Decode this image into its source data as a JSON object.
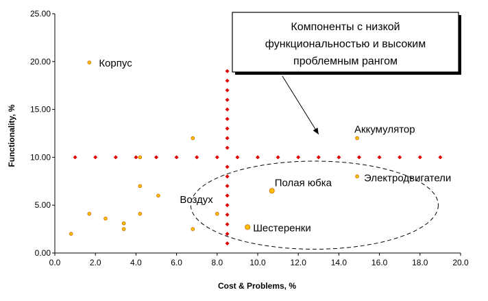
{
  "chart_data": {
    "type": "scatter",
    "xlabel": "Cost & Problems, %",
    "ylabel": "Functionality, %",
    "xlim": [
      0,
      20
    ],
    "ylim": [
      0,
      25
    ],
    "x_ticks": [
      "0.0",
      "2.0",
      "4.0",
      "6.0",
      "8.0",
      "10.0",
      "12.0",
      "14.0",
      "16.0",
      "18.0",
      "20.0"
    ],
    "y_ticks": [
      "0.00",
      "5.00",
      "10.00",
      "15.00",
      "20.00",
      "25.00"
    ],
    "grid": false,
    "legend": "none",
    "colors": {
      "component_fill": "#ffc000",
      "component_stroke": "#cc6600",
      "threshold_fill": "#e00000",
      "callout_border": "#000000",
      "ellipse_stroke": "#000000"
    },
    "series": [
      {
        "points": [
          {
            "x": 0.8,
            "y": 2.0
          },
          {
            "x": 1.7,
            "y": 4.1
          },
          {
            "x": 1.7,
            "y": 19.9,
            "label": "Корпус"
          },
          {
            "x": 2.5,
            "y": 3.6
          },
          {
            "x": 3.4,
            "y": 3.1
          },
          {
            "x": 3.4,
            "y": 2.5
          },
          {
            "x": 4.2,
            "y": 10.0
          },
          {
            "x": 4.2,
            "y": 7.0
          },
          {
            "x": 4.2,
            "y": 4.1
          },
          {
            "x": 5.1,
            "y": 6.0
          },
          {
            "x": 6.8,
            "y": 12.0
          },
          {
            "x": 6.8,
            "y": 2.5
          },
          {
            "x": 8.0,
            "y": 4.1,
            "label": "Воздух"
          },
          {
            "x": 9.5,
            "y": 2.7,
            "label": "Шестеренки",
            "size": "large"
          },
          {
            "x": 10.7,
            "y": 6.5,
            "label": "Полая юбка",
            "size": "large"
          },
          {
            "x": 14.9,
            "y": 12.0,
            "label": "Аккумулятор"
          },
          {
            "x": 14.9,
            "y": 8.0,
            "label": "Электродвигатели"
          }
        ]
      },
      {
        "points": [
          {
            "x": 1,
            "y": 10
          },
          {
            "x": 2,
            "y": 10
          },
          {
            "x": 3,
            "y": 10
          },
          {
            "x": 4,
            "y": 10
          },
          {
            "x": 5,
            "y": 10
          },
          {
            "x": 6,
            "y": 10
          },
          {
            "x": 7,
            "y": 10
          },
          {
            "x": 8,
            "y": 10
          },
          {
            "x": 9,
            "y": 10
          },
          {
            "x": 10,
            "y": 10
          },
          {
            "x": 11,
            "y": 10
          },
          {
            "x": 12,
            "y": 10
          },
          {
            "x": 13,
            "y": 10
          },
          {
            "x": 14,
            "y": 10
          },
          {
            "x": 15,
            "y": 10
          },
          {
            "x": 16,
            "y": 10
          },
          {
            "x": 17,
            "y": 10
          },
          {
            "x": 18,
            "y": 10
          },
          {
            "x": 19,
            "y": 10
          },
          {
            "x": 8.5,
            "y": 1
          },
          {
            "x": 8.5,
            "y": 2
          },
          {
            "x": 8.5,
            "y": 3
          },
          {
            "x": 8.5,
            "y": 4
          },
          {
            "x": 8.5,
            "y": 5
          },
          {
            "x": 8.5,
            "y": 6
          },
          {
            "x": 8.5,
            "y": 7
          },
          {
            "x": 8.5,
            "y": 8
          },
          {
            "x": 8.5,
            "y": 9
          },
          {
            "x": 8.5,
            "y": 11
          },
          {
            "x": 8.5,
            "y": 12
          },
          {
            "x": 8.5,
            "y": 13
          },
          {
            "x": 8.5,
            "y": 14
          },
          {
            "x": 8.5,
            "y": 15
          },
          {
            "x": 8.5,
            "y": 16
          },
          {
            "x": 8.5,
            "y": 17
          },
          {
            "x": 8.5,
            "y": 18
          },
          {
            "x": 8.5,
            "y": 19
          }
        ]
      }
    ],
    "annotations": {
      "callout_lines": [
        "Компоненты с низкой",
        "функциональностью и высоким",
        "проблемным рангом"
      ],
      "callout_arrow_target": {
        "x": 13.0,
        "y": 12.4
      },
      "ellipse": {
        "cx": 12.8,
        "cy": 5.0,
        "rx": 6.1,
        "ry": 4.6
      }
    }
  }
}
